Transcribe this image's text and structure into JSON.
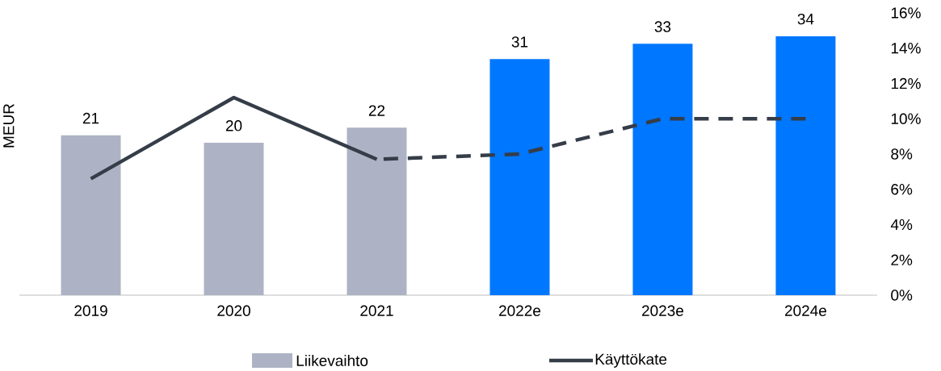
{
  "chart_data": {
    "type": "bar",
    "ylabel": "MEUR",
    "categories": [
      "2019",
      "2020",
      "2021",
      "2022e",
      "2023e",
      "2024e"
    ],
    "y2lim": [
      0,
      16
    ],
    "y2ticks": [
      {
        "value": 0,
        "label": "0%"
      },
      {
        "value": 2,
        "label": "2%"
      },
      {
        "value": 4,
        "label": "4%"
      },
      {
        "value": 6,
        "label": "6%"
      },
      {
        "value": 8,
        "label": "8%"
      },
      {
        "value": 10,
        "label": "10%"
      },
      {
        "value": 12,
        "label": "12%"
      },
      {
        "value": 14,
        "label": "14%"
      },
      {
        "value": 16,
        "label": "16%"
      }
    ],
    "legend": "bottom",
    "grid": false,
    "series": [
      {
        "name": "Liikevaihto",
        "color": "#adb3c4",
        "colors": [
          "#adb3c4",
          "#adb3c4",
          "#adb3c4",
          "#0077ff",
          "#0077ff",
          "#0077ff"
        ],
        "values": [
          21,
          20,
          22,
          31,
          33,
          34
        ],
        "value_labels": [
          "21",
          "20",
          "22",
          "31",
          "33",
          "34"
        ]
      },
      {
        "name": "Käyttökate",
        "type": "line",
        "axis": "y2",
        "color": "#353d48",
        "line_style": "solid",
        "values": [
          6.6,
          11.2,
          7.7,
          null,
          null,
          null
        ]
      },
      {
        "type": "line",
        "axis": "y2",
        "color": "#353d48",
        "line_style": "dashed",
        "values": [
          null,
          null,
          7.7,
          8.0,
          10.0,
          10.0
        ]
      }
    ]
  }
}
